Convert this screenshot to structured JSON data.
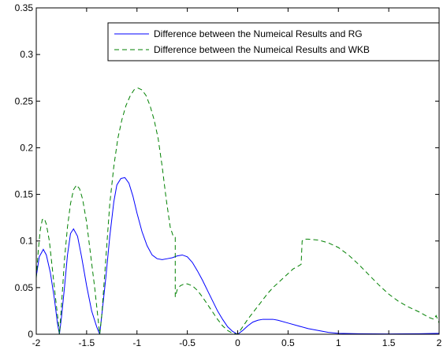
{
  "chart_data": {
    "type": "line",
    "title": "",
    "xlabel": "",
    "ylabel": "",
    "xlim": [
      -2,
      2
    ],
    "ylim": [
      0,
      0.35
    ],
    "x_ticks": [
      -2,
      -1.5,
      -1,
      -0.5,
      0,
      0.5,
      1,
      1.5,
      2
    ],
    "x_tick_labels": [
      "-2",
      "-1.5",
      "-1",
      "-0.5",
      "0",
      "0.5",
      "1",
      "1.5",
      "2"
    ],
    "y_ticks": [
      0,
      0.05,
      0.1,
      0.15,
      0.2,
      0.25,
      0.3,
      0.35
    ],
    "y_tick_labels": [
      "0",
      "0.05",
      "0.1",
      "0.15",
      "0.2",
      "0.25",
      "0.3",
      "0.35"
    ],
    "grid": false,
    "legend_position": "top-right",
    "series": [
      {
        "name": "Difference between the Numeical Results and RG",
        "color": "#0000ff",
        "style": "solid",
        "points": [
          [
            -2.0,
            0.062
          ],
          [
            -1.97,
            0.083
          ],
          [
            -1.93,
            0.091
          ],
          [
            -1.9,
            0.085
          ],
          [
            -1.86,
            0.066
          ],
          [
            -1.82,
            0.038
          ],
          [
            -1.79,
            0.012
          ],
          [
            -1.77,
            0.0
          ],
          [
            -1.75,
            0.018
          ],
          [
            -1.72,
            0.05
          ],
          [
            -1.69,
            0.085
          ],
          [
            -1.66,
            0.108
          ],
          [
            -1.63,
            0.113
          ],
          [
            -1.59,
            0.105
          ],
          [
            -1.55,
            0.083
          ],
          [
            -1.5,
            0.052
          ],
          [
            -1.45,
            0.025
          ],
          [
            -1.4,
            0.008
          ],
          [
            -1.37,
            0.0
          ],
          [
            -1.35,
            0.02
          ],
          [
            -1.31,
            0.06
          ],
          [
            -1.27,
            0.105
          ],
          [
            -1.23,
            0.142
          ],
          [
            -1.2,
            0.16
          ],
          [
            -1.16,
            0.167
          ],
          [
            -1.12,
            0.168
          ],
          [
            -1.08,
            0.162
          ],
          [
            -1.04,
            0.148
          ],
          [
            -1.0,
            0.13
          ],
          [
            -0.95,
            0.11
          ],
          [
            -0.9,
            0.095
          ],
          [
            -0.85,
            0.085
          ],
          [
            -0.8,
            0.081
          ],
          [
            -0.75,
            0.08
          ],
          [
            -0.7,
            0.081
          ],
          [
            -0.65,
            0.082
          ],
          [
            -0.6,
            0.084
          ],
          [
            -0.55,
            0.085
          ],
          [
            -0.5,
            0.083
          ],
          [
            -0.45,
            0.077
          ],
          [
            -0.4,
            0.068
          ],
          [
            -0.35,
            0.058
          ],
          [
            -0.3,
            0.047
          ],
          [
            -0.25,
            0.036
          ],
          [
            -0.2,
            0.025
          ],
          [
            -0.15,
            0.016
          ],
          [
            -0.1,
            0.008
          ],
          [
            -0.05,
            0.003
          ],
          [
            0.0,
            0.0
          ],
          [
            0.05,
            0.004
          ],
          [
            0.1,
            0.009
          ],
          [
            0.15,
            0.013
          ],
          [
            0.2,
            0.015
          ],
          [
            0.25,
            0.016
          ],
          [
            0.3,
            0.016
          ],
          [
            0.35,
            0.016
          ],
          [
            0.4,
            0.015
          ],
          [
            0.5,
            0.012
          ],
          [
            0.6,
            0.009
          ],
          [
            0.7,
            0.006
          ],
          [
            0.8,
            0.004
          ],
          [
            0.9,
            0.002
          ],
          [
            1.0,
            0.001
          ],
          [
            1.2,
            0.0005
          ],
          [
            1.5,
            0.0003
          ],
          [
            1.8,
            0.0005
          ],
          [
            2.0,
            0.001
          ]
        ]
      },
      {
        "name": "Difference between the Numeical Results and WKB",
        "color": "#008000",
        "style": "dashed",
        "points": [
          [
            -2.0,
            0.06
          ],
          [
            -1.98,
            0.09
          ],
          [
            -1.96,
            0.112
          ],
          [
            -1.94,
            0.123
          ],
          [
            -1.92,
            0.124
          ],
          [
            -1.9,
            0.118
          ],
          [
            -1.87,
            0.1
          ],
          [
            -1.84,
            0.07
          ],
          [
            -1.81,
            0.04
          ],
          [
            -1.78,
            0.012
          ],
          [
            -1.77,
            0.0
          ],
          [
            -1.75,
            0.03
          ],
          [
            -1.72,
            0.08
          ],
          [
            -1.69,
            0.115
          ],
          [
            -1.66,
            0.14
          ],
          [
            -1.63,
            0.155
          ],
          [
            -1.6,
            0.16
          ],
          [
            -1.57,
            0.156
          ],
          [
            -1.54,
            0.145
          ],
          [
            -1.5,
            0.12
          ],
          [
            -1.46,
            0.085
          ],
          [
            -1.42,
            0.05
          ],
          [
            -1.39,
            0.02
          ],
          [
            -1.37,
            0.0
          ],
          [
            -1.35,
            0.02
          ],
          [
            -1.31,
            0.08
          ],
          [
            -1.27,
            0.14
          ],
          [
            -1.23,
            0.18
          ],
          [
            -1.19,
            0.21
          ],
          [
            -1.15,
            0.23
          ],
          [
            -1.11,
            0.245
          ],
          [
            -1.07,
            0.255
          ],
          [
            -1.03,
            0.262
          ],
          [
            -0.99,
            0.264
          ],
          [
            -0.95,
            0.262
          ],
          [
            -0.91,
            0.256
          ],
          [
            -0.87,
            0.245
          ],
          [
            -0.83,
            0.23
          ],
          [
            -0.79,
            0.21
          ],
          [
            -0.75,
            0.18
          ],
          [
            -0.71,
            0.145
          ],
          [
            -0.67,
            0.115
          ],
          [
            -0.64,
            0.105
          ],
          [
            -0.62,
            0.104
          ],
          [
            -0.62,
            0.04
          ],
          [
            -0.6,
            0.048
          ],
          [
            -0.57,
            0.052
          ],
          [
            -0.53,
            0.054
          ],
          [
            -0.5,
            0.054
          ],
          [
            -0.45,
            0.052
          ],
          [
            -0.4,
            0.047
          ],
          [
            -0.35,
            0.04
          ],
          [
            -0.3,
            0.032
          ],
          [
            -0.25,
            0.024
          ],
          [
            -0.2,
            0.016
          ],
          [
            -0.15,
            0.009
          ],
          [
            -0.1,
            0.004
          ],
          [
            -0.05,
            0.001
          ],
          [
            0.0,
            0.0
          ],
          [
            0.05,
            0.008
          ],
          [
            0.1,
            0.016
          ],
          [
            0.15,
            0.023
          ],
          [
            0.2,
            0.03
          ],
          [
            0.25,
            0.037
          ],
          [
            0.3,
            0.044
          ],
          [
            0.35,
            0.05
          ],
          [
            0.4,
            0.055
          ],
          [
            0.45,
            0.06
          ],
          [
            0.5,
            0.065
          ],
          [
            0.55,
            0.07
          ],
          [
            0.6,
            0.073
          ],
          [
            0.63,
            0.075
          ],
          [
            0.64,
            0.1
          ],
          [
            0.66,
            0.102
          ],
          [
            0.7,
            0.102
          ],
          [
            0.8,
            0.101
          ],
          [
            0.9,
            0.098
          ],
          [
            1.0,
            0.093
          ],
          [
            1.1,
            0.085
          ],
          [
            1.2,
            0.075
          ],
          [
            1.3,
            0.064
          ],
          [
            1.4,
            0.053
          ],
          [
            1.5,
            0.043
          ],
          [
            1.6,
            0.035
          ],
          [
            1.7,
            0.029
          ],
          [
            1.8,
            0.024
          ],
          [
            1.85,
            0.021
          ],
          [
            1.9,
            0.018
          ],
          [
            1.95,
            0.016
          ],
          [
            1.97,
            0.02
          ],
          [
            2.0,
            0.012
          ]
        ]
      }
    ]
  }
}
